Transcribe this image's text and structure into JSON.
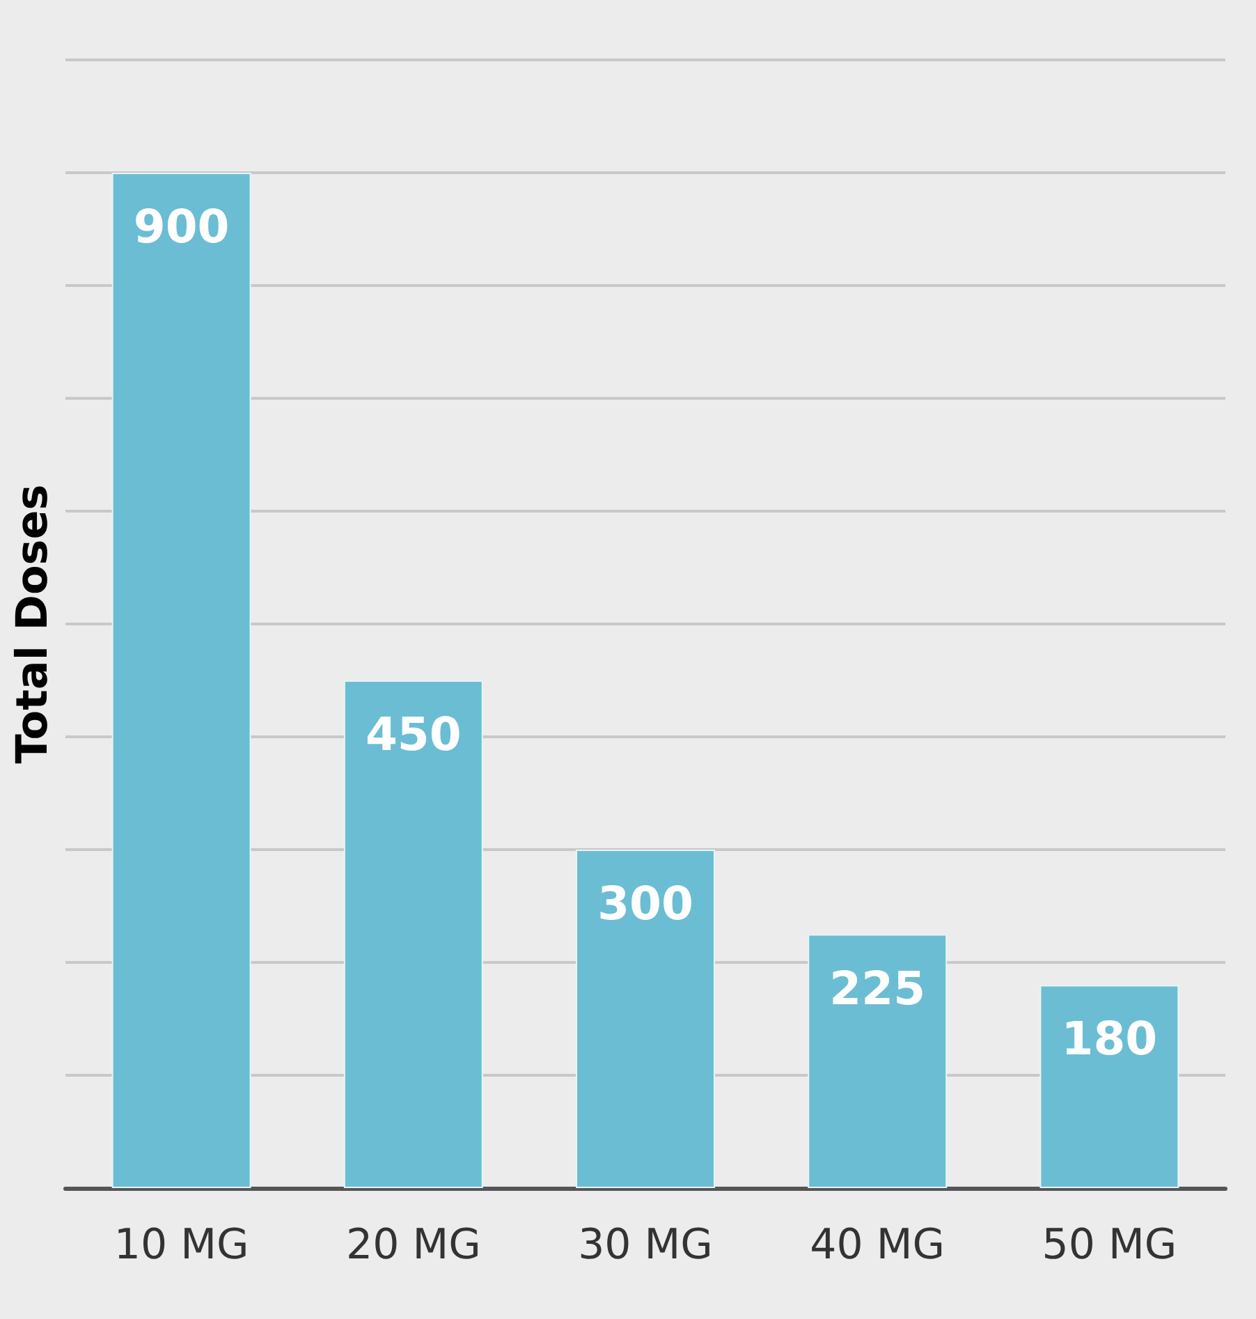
{
  "chart_data": {
    "type": "bar",
    "ylabel": "Total Doses",
    "categories": [
      "10 MG",
      "20 MG",
      "30 MG",
      "40 MG",
      "50 MG"
    ],
    "values": [
      900,
      450,
      300,
      225,
      180
    ],
    "color": "#6bbdd3",
    "data_labels": true,
    "ylim": [
      0,
      1000
    ],
    "yticks": [
      {
        "value": 0,
        "label": null
      },
      {
        "value": 100,
        "label": null
      },
      {
        "value": 200,
        "label": null
      },
      {
        "value": 300,
        "label": null
      },
      {
        "value": 400,
        "label": null
      },
      {
        "value": 500,
        "label": null
      },
      {
        "value": 600,
        "label": null
      },
      {
        "value": 700,
        "label": null
      },
      {
        "value": 800,
        "label": null
      },
      {
        "value": 900,
        "label": null
      },
      {
        "value": 1000,
        "label": null
      }
    ],
    "grid": "y",
    "tick_labels": "x"
  }
}
